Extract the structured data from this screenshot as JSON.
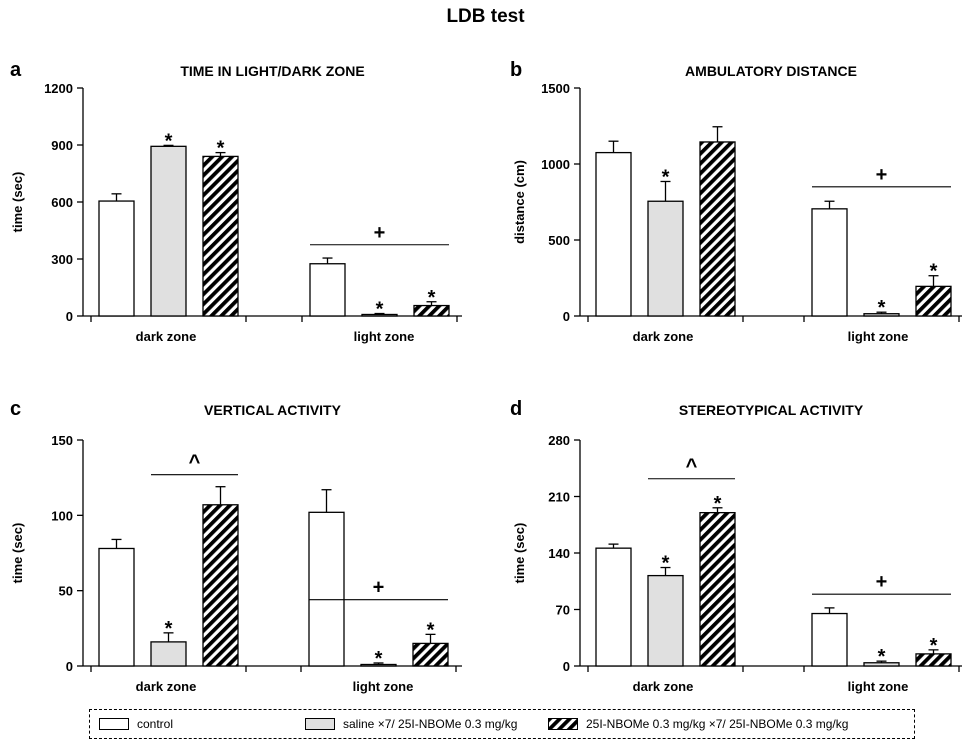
{
  "figure_title": "LDB test",
  "colors": {
    "control": "#ffffff",
    "saline": "#e0e0e0",
    "nbome": "hatch"
  },
  "legend": [
    {
      "key": "control",
      "label": "control"
    },
    {
      "key": "saline",
      "label": "saline ×7/ 25I-NBOMe 0.3 mg/kg"
    },
    {
      "key": "nbome",
      "label": "25I-NBOMe 0.3 mg/kg ×7/ 25I-NBOMe 0.3 mg/kg"
    }
  ],
  "chart_data": [
    {
      "type": "bar",
      "panel": "a",
      "title": "TIME IN LIGHT/DARK ZONE",
      "ylabel": "time (sec)",
      "ylim": [
        0,
        1200
      ],
      "yticks": [
        0,
        300,
        600,
        900,
        1200
      ],
      "categories": [
        "dark zone",
        "light zone"
      ],
      "series": [
        {
          "name": "control",
          "values": [
            605,
            275
          ],
          "errors": [
            38,
            30
          ],
          "stars": [
            false,
            false
          ]
        },
        {
          "name": "saline ×7/ 25I-NBOMe 0.3 mg/kg",
          "values": [
            893,
            8
          ],
          "errors": [
            5,
            5
          ],
          "stars": [
            true,
            true
          ]
        },
        {
          "name": "25I-NBOMe 0.3 mg/kg ×7/ 25I-NBOMe 0.3 mg/kg",
          "values": [
            840,
            55
          ],
          "errors": [
            20,
            20
          ],
          "stars": [
            true,
            true
          ]
        }
      ],
      "annotations": [
        {
          "symbol": "+",
          "category": 1,
          "y": 375
        }
      ]
    },
    {
      "type": "bar",
      "panel": "b",
      "title": "AMBULATORY DISTANCE",
      "ylabel": "distance (cm)",
      "ylim": [
        0,
        1500
      ],
      "yticks": [
        0,
        500,
        1000,
        1500
      ],
      "categories": [
        "dark zone",
        "light zone"
      ],
      "series": [
        {
          "name": "control",
          "values": [
            1075,
            705
          ],
          "errors": [
            75,
            50
          ],
          "stars": [
            false,
            false
          ]
        },
        {
          "name": "saline ×7/ 25I-NBOMe 0.3 mg/kg",
          "values": [
            755,
            15
          ],
          "errors": [
            130,
            10
          ],
          "stars": [
            true,
            true
          ]
        },
        {
          "name": "25I-NBOMe 0.3 mg/kg ×7/ 25I-NBOMe 0.3 mg/kg",
          "values": [
            1145,
            195
          ],
          "errors": [
            100,
            70
          ],
          "stars": [
            false,
            true
          ]
        }
      ],
      "annotations": [
        {
          "symbol": "+",
          "category": 1,
          "y": 850
        }
      ]
    },
    {
      "type": "bar",
      "panel": "c",
      "title": "VERTICAL ACTIVITY",
      "ylabel": "time (sec)",
      "ylim": [
        0,
        150
      ],
      "yticks": [
        0,
        50,
        100,
        150
      ],
      "categories": [
        "dark zone",
        "light zone"
      ],
      "series": [
        {
          "name": "control",
          "values": [
            78,
            102
          ],
          "errors": [
            6,
            15
          ],
          "stars": [
            false,
            false
          ]
        },
        {
          "name": "saline ×7/ 25I-NBOMe 0.3 mg/kg",
          "values": [
            16,
            1
          ],
          "errors": [
            6,
            1
          ],
          "stars": [
            true,
            true
          ]
        },
        {
          "name": "25I-NBOMe 0.3 mg/kg ×7/ 25I-NBOMe 0.3 mg/kg",
          "values": [
            107,
            15
          ],
          "errors": [
            12,
            6
          ],
          "stars": [
            false,
            true
          ]
        }
      ],
      "annotations": [
        {
          "symbol": "^",
          "category": 0,
          "y": 127
        },
        {
          "symbol": "+",
          "category": 1,
          "y": 44
        }
      ]
    },
    {
      "type": "bar",
      "panel": "d",
      "title": "STEREOTYPICAL ACTIVITY",
      "ylabel": "time (sec)",
      "ylim": [
        0,
        280
      ],
      "yticks": [
        0,
        70,
        140,
        210,
        280
      ],
      "categories": [
        "dark zone",
        "light zone"
      ],
      "series": [
        {
          "name": "control",
          "values": [
            146,
            65
          ],
          "errors": [
            5,
            7
          ],
          "stars": [
            false,
            false
          ]
        },
        {
          "name": "saline ×7/ 25I-NBOMe 0.3 mg/kg",
          "values": [
            112,
            4
          ],
          "errors": [
            10,
            2
          ],
          "stars": [
            true,
            true
          ]
        },
        {
          "name": "25I-NBOMe 0.3 mg/kg ×7/ 25I-NBOMe 0.3 mg/kg",
          "values": [
            190,
            15
          ],
          "errors": [
            6,
            5
          ],
          "stars": [
            true,
            true
          ]
        }
      ],
      "annotations": [
        {
          "symbol": "^",
          "category": 0,
          "y": 232
        },
        {
          "symbol": "+",
          "category": 1,
          "y": 89
        }
      ]
    }
  ]
}
